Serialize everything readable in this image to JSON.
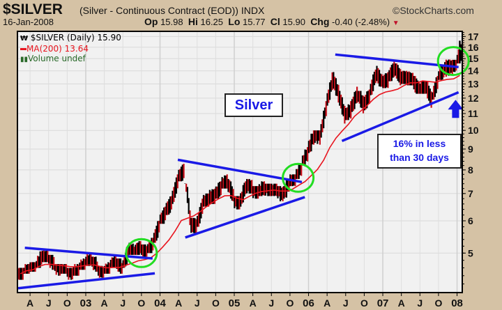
{
  "header": {
    "title": "$SILVER",
    "subtitle": "(Silver - Continuous Contract (EOD)) INDX",
    "watermark": "©StockCharts.com",
    "date": "16-Jan-2008",
    "op_label": "Op",
    "op": "15.98",
    "hi_label": "Hi",
    "hi": "16.25",
    "lo_label": "Lo",
    "lo": "15.77",
    "cl_label": "Cl",
    "cl": "15.90",
    "chg_label": "Chg",
    "chg": "-0.40 (-2.48%)"
  },
  "legend": {
    "price": "$SILVER (Daily) 15.90",
    "ma": "MA(200) 13.64",
    "volume": "Volume undef"
  },
  "annotations": {
    "silver_label": "Silver",
    "pct_line1": "16% in less",
    "pct_line2": "than 30 days"
  },
  "colors": {
    "price": "#000000",
    "ma": "#e8141e",
    "trend": "#1a1ae6",
    "circle": "#22dd22",
    "arrow": "#1a1ae6"
  },
  "chart_data": {
    "type": "line",
    "scale": "log",
    "ylim": [
      4.0,
      17.5
    ],
    "xlim": [
      2002.08,
      2008.07
    ],
    "yticks": [
      5,
      6,
      7,
      8,
      9,
      10,
      11,
      12,
      13,
      14,
      15,
      16,
      17
    ],
    "xticks": [
      {
        "x": 2002.25,
        "label": "A"
      },
      {
        "x": 2002.5,
        "label": "J"
      },
      {
        "x": 2002.75,
        "label": "O"
      },
      {
        "x": 2003,
        "label": "03"
      },
      {
        "x": 2003.25,
        "label": "A"
      },
      {
        "x": 2003.5,
        "label": "J"
      },
      {
        "x": 2003.75,
        "label": "O"
      },
      {
        "x": 2004,
        "label": "04"
      },
      {
        "x": 2004.25,
        "label": "A"
      },
      {
        "x": 2004.5,
        "label": "J"
      },
      {
        "x": 2004.75,
        "label": "O"
      },
      {
        "x": 2005,
        "label": "05"
      },
      {
        "x": 2005.25,
        "label": "A"
      },
      {
        "x": 2005.5,
        "label": "J"
      },
      {
        "x": 2005.75,
        "label": "O"
      },
      {
        "x": 2006,
        "label": "06"
      },
      {
        "x": 2006.25,
        "label": "A"
      },
      {
        "x": 2006.5,
        "label": "J"
      },
      {
        "x": 2006.75,
        "label": "O"
      },
      {
        "x": 2007,
        "label": "07"
      },
      {
        "x": 2007.25,
        "label": "A"
      },
      {
        "x": 2007.5,
        "label": "J"
      },
      {
        "x": 2007.75,
        "label": "O"
      },
      {
        "x": 2008,
        "label": "08"
      }
    ],
    "start": 2002.12,
    "step_months": 1,
    "close": [
      4.45,
      4.6,
      4.6,
      4.9,
      4.9,
      4.7,
      4.55,
      4.55,
      4.45,
      4.55,
      4.7,
      4.85,
      4.6,
      4.45,
      4.6,
      4.8,
      4.55,
      5.1,
      5.0,
      5.2,
      5.0,
      5.3,
      5.9,
      6.3,
      6.7,
      7.6,
      8.0,
      5.9,
      5.8,
      6.6,
      6.8,
      6.9,
      7.3,
      7.5,
      6.8,
      6.6,
      7.4,
      7.2,
      7.0,
      7.3,
      7.1,
      7.2,
      6.9,
      7.5,
      7.6,
      8.2,
      8.9,
      9.8,
      9.7,
      11.6,
      13.4,
      12.2,
      10.8,
      11.3,
      12.4,
      11.5,
      12.3,
      13.9,
      13.0,
      13.4,
      14.3,
      13.4,
      13.4,
      13.2,
      12.5,
      12.9,
      11.8,
      13.4,
      14.2,
      14.3,
      14.7,
      15.9
    ],
    "high": [
      4.6,
      4.7,
      4.75,
      5.15,
      5.1,
      4.95,
      4.7,
      4.7,
      4.6,
      4.7,
      4.85,
      5.0,
      4.9,
      4.65,
      4.75,
      4.95,
      4.85,
      5.2,
      5.3,
      5.35,
      5.25,
      5.45,
      6.0,
      6.5,
      6.9,
      7.8,
      8.3,
      7.4,
      6.1,
      6.8,
      7.0,
      7.2,
      7.5,
      7.8,
      7.6,
      6.9,
      7.5,
      7.6,
      7.3,
      7.5,
      7.4,
      7.4,
      7.3,
      7.6,
      7.8,
      8.3,
      9.1,
      10.0,
      10.0,
      11.8,
      14.0,
      14.9,
      12.5,
      11.8,
      12.8,
      12.5,
      12.6,
      14.1,
      14.4,
      13.9,
      14.8,
      14.6,
      14.0,
      14.0,
      13.6,
      13.2,
      13.2,
      13.6,
      14.5,
      15.8,
      14.9,
      16.6
    ],
    "low": [
      4.3,
      4.45,
      4.5,
      4.6,
      4.75,
      4.55,
      4.4,
      4.45,
      4.3,
      4.4,
      4.55,
      4.65,
      4.5,
      4.35,
      4.45,
      4.6,
      4.45,
      4.6,
      4.95,
      4.95,
      4.9,
      5.0,
      5.3,
      5.9,
      6.2,
      6.6,
      7.5,
      5.5,
      5.6,
      5.8,
      6.5,
      6.6,
      6.8,
      7.2,
      6.7,
      6.4,
      6.5,
      7.0,
      6.8,
      6.9,
      6.9,
      6.9,
      6.7,
      6.8,
      7.3,
      7.6,
      8.2,
      8.8,
      9.2,
      9.6,
      11.5,
      11.0,
      9.5,
      10.6,
      11.1,
      10.9,
      11.2,
      12.2,
      12.8,
      12.7,
      13.2,
      12.9,
      13.0,
      12.9,
      12.3,
      12.3,
      11.2,
      11.9,
      13.3,
      13.5,
      13.6,
      14.6
    ],
    "ma_period_months": 10,
    "ma_last": 13.64,
    "trendlines": [
      {
        "x": [
          2002.18,
          2003.9
        ],
        "y": [
          5.15,
          4.85
        ]
      },
      {
        "x": [
          2002.09,
          2003.93
        ],
        "y": [
          4.1,
          4.46
        ]
      },
      {
        "x": [
          2004.24,
          2005.91
        ],
        "y": [
          8.47,
          7.47
        ]
      },
      {
        "x": [
          2004.34,
          2005.95
        ],
        "y": [
          5.46,
          6.86
        ]
      },
      {
        "x": [
          2006.36,
          2008.02
        ],
        "y": [
          15.35,
          14.3
        ]
      },
      {
        "x": [
          2006.45,
          2008.02
        ],
        "y": [
          9.42,
          12.4
        ]
      }
    ],
    "circles": [
      {
        "x": 2003.75,
        "y": 5.0
      },
      {
        "x": 2005.86,
        "y": 7.65
      },
      {
        "x": 2007.95,
        "y": 14.8
      }
    ],
    "arrow": {
      "x": 2007.98,
      "y": 10.9
    }
  }
}
